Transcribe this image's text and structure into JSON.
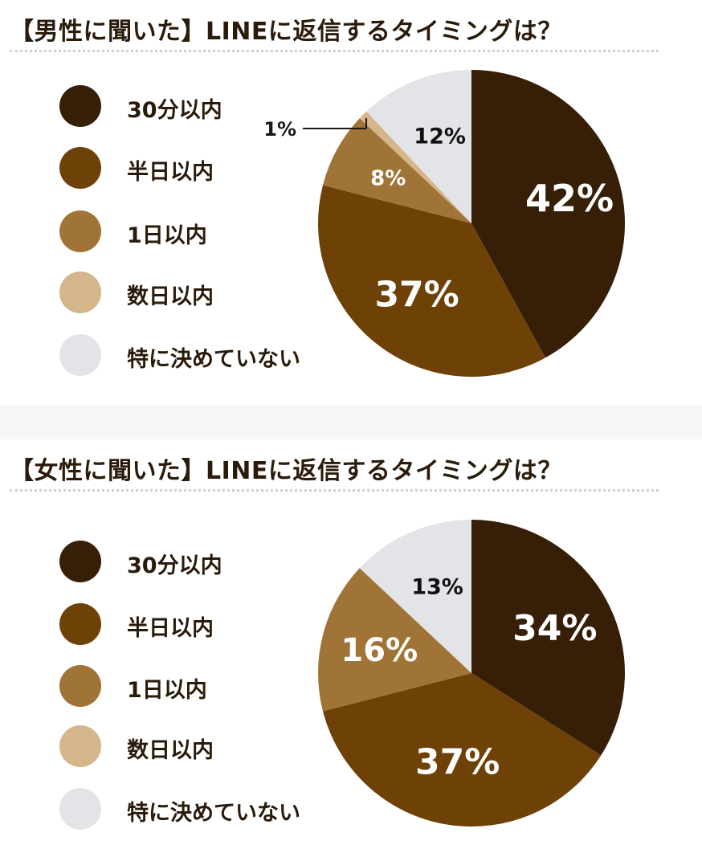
{
  "chart_data": [
    {
      "type": "pie",
      "title": "【男性に聞いた】LINEに返信するタイミングは？",
      "categories": [
        "30分以内",
        "半日以内",
        "1日以内",
        "数日以内",
        "特に決めていない"
      ],
      "values": [
        42,
        37,
        8,
        1,
        12
      ],
      "value_labels": [
        "42%",
        "37%",
        "8%",
        "1%",
        "12%"
      ],
      "colors": [
        "#361f06",
        "#6e4106",
        "#a07436",
        "#d5b68b",
        "#e2e4e8"
      ],
      "legend_position": "left"
    },
    {
      "type": "pie",
      "title": "【女性に聞いた】LINEに返信するタイミングは？",
      "categories": [
        "30分以内",
        "半日以内",
        "1日以内",
        "数日以内",
        "特に決めていない"
      ],
      "values": [
        34,
        37,
        16,
        0,
        13
      ],
      "value_labels": [
        "34%",
        "37%",
        "16%",
        "",
        "13%"
      ],
      "colors": [
        "#361f06",
        "#6e4106",
        "#a07436",
        "#d5b68b",
        "#e2e4e8"
      ],
      "legend_position": "left"
    }
  ]
}
